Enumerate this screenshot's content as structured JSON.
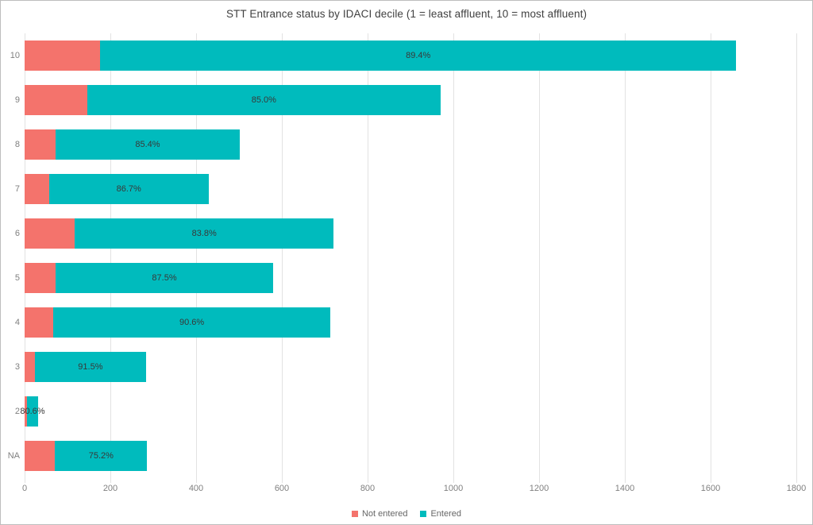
{
  "title": "STT Entrance status by IDACI decile (1 = least affluent, 10 = most affluent)",
  "colors": {
    "not_entered": "#f4736c",
    "entered": "#00bbbd",
    "title_text": "#404040",
    "axis_text": "#808080",
    "gridline": "#e2e2e2",
    "bar_label_text": "#383838",
    "border": "#bdbdbd"
  },
  "legend": {
    "position": "bottom",
    "items": [
      {
        "label": "Not entered",
        "color": "#f4736c"
      },
      {
        "label": "Entered",
        "color": "#00bbbd"
      }
    ]
  },
  "chart_data": {
    "type": "bar",
    "orientation": "horizontal",
    "stacked": true,
    "title": "STT Entrance status by IDACI decile (1 = least affluent, 10 = most affluent)",
    "categories": [
      "10",
      "9",
      "8",
      "7",
      "6",
      "5",
      "4",
      "3",
      "2",
      "NA"
    ],
    "series": [
      {
        "name": "Not entered",
        "color": "#f4736c",
        "values": [
          176,
          146,
          73,
          57,
          117,
          72,
          67,
          24,
          6,
          71
        ]
      },
      {
        "name": "Entered",
        "color": "#00bbbd",
        "values": [
          1484,
          824,
          428,
          372,
          604,
          508,
          646,
          259,
          25,
          215
        ]
      }
    ],
    "totals": [
      1660,
      970,
      501,
      429,
      721,
      580,
      713,
      283,
      31,
      286
    ],
    "entered_pct_labels": [
      "89.4%",
      "85.0%",
      "85.4%",
      "86.7%",
      "83.8%",
      "87.5%",
      "90.6%",
      "91.5%",
      "80.6%",
      "75.2%"
    ],
    "x_axis": {
      "min": 0,
      "max": 1800,
      "tick_step": 200,
      "ticks": [
        0,
        200,
        400,
        600,
        800,
        1000,
        1200,
        1400,
        1600,
        1800
      ]
    },
    "y_axis_label": "",
    "grid": true,
    "legend_position": "bottom"
  }
}
